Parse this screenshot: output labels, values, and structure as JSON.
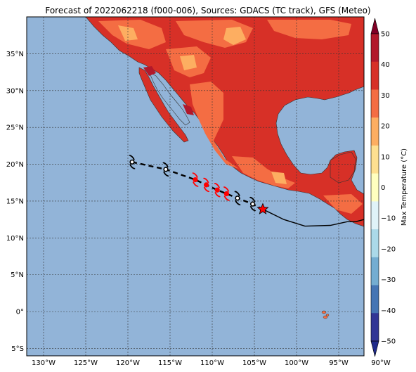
{
  "title": "Forecast of 2022062218 (f000-006), Sources: GDACS (TC track), GFS (Meteo)",
  "map": {
    "lon_range": [
      -132,
      -92
    ],
    "lat_range": [
      -6,
      40
    ],
    "lon_ticks": [
      "130°W",
      "125°W",
      "120°W",
      "115°W",
      "110°W",
      "105°W",
      "100°W",
      "95°W",
      "90°W"
    ],
    "lat_ticks": [
      "5°S",
      "0°",
      "5°N",
      "10°N",
      "15°N",
      "20°N",
      "25°N",
      "30°N",
      "35°N"
    ],
    "ocean_color": "#92b4d8",
    "grid": true
  },
  "legend": {
    "colorbar_label": "Max Temperature (°C)",
    "ticks": [
      "50",
      "40",
      "30",
      "20",
      "10",
      "0",
      "−10",
      "−20",
      "−30",
      "−40",
      "−50"
    ],
    "colors_top_to_bottom": [
      "#800026",
      "#b2182b",
      "#d73027",
      "#f46d43",
      "#fdae61",
      "#fee090",
      "#ffffbf",
      "#e0f3f8",
      "#abd9e9",
      "#74add1",
      "#4575b4",
      "#313695",
      "#1f2a8a"
    ]
  },
  "track": {
    "past_track_color": "#000000",
    "forecast_color": "#ff0000",
    "current_position_icon": "star-icon",
    "storm_icon": "tropical-cyclone-icon",
    "points": [
      {
        "lon": -119.5,
        "lat": 20.3,
        "type": "past"
      },
      {
        "lon": -115.5,
        "lat": 19.3,
        "type": "past"
      },
      {
        "lon": -112.0,
        "lat": 17.9,
        "type": "forecast"
      },
      {
        "lon": -110.7,
        "lat": 17.2,
        "type": "forecast"
      },
      {
        "lon": -109.4,
        "lat": 16.5,
        "type": "forecast"
      },
      {
        "lon": -108.3,
        "lat": 16.0,
        "type": "forecast"
      },
      {
        "lon": -107.0,
        "lat": 15.4,
        "type": "past"
      },
      {
        "lon": -105.2,
        "lat": 14.6,
        "type": "past"
      },
      {
        "lon": -104.0,
        "lat": 13.9,
        "type": "current"
      }
    ],
    "observed_path": [
      [
        -104.0,
        13.9
      ],
      [
        -101.5,
        12.5
      ],
      [
        -99.0,
        11.6
      ],
      [
        -96.0,
        11.7
      ],
      [
        -94.0,
        12.2
      ],
      [
        -93.0,
        12.2
      ],
      [
        -92.0,
        12.5
      ]
    ]
  }
}
